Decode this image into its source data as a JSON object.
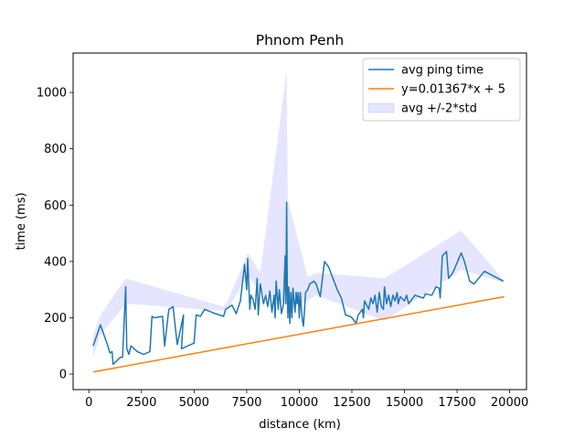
{
  "chart_data": {
    "type": "line",
    "title": "Phnom Penh",
    "xlabel": "distance (km)",
    "ylabel": "time (ms)",
    "xlim": [
      -750,
      20800
    ],
    "ylim": [
      -55,
      1140
    ],
    "xticks": [
      0,
      2500,
      5000,
      7500,
      10000,
      12500,
      15000,
      17500,
      20000
    ],
    "yticks": [
      0,
      200,
      400,
      600,
      800,
      1000
    ],
    "grid": false,
    "legend_position": "top-right",
    "series": [
      {
        "name": "avg ping time",
        "kind": "line",
        "color": "#1f77b4",
        "points": [
          [
            200,
            100
          ],
          [
            550,
            175
          ],
          [
            900,
            100
          ],
          [
            1000,
            75
          ],
          [
            1100,
            80
          ],
          [
            1150,
            35
          ],
          [
            1500,
            60
          ],
          [
            1600,
            60
          ],
          [
            1750,
            310
          ],
          [
            1800,
            90
          ],
          [
            1900,
            70
          ],
          [
            2000,
            100
          ],
          [
            2300,
            80
          ],
          [
            2600,
            70
          ],
          [
            2900,
            80
          ],
          [
            3000,
            205
          ],
          [
            3100,
            200
          ],
          [
            3500,
            205
          ],
          [
            3600,
            100
          ],
          [
            3800,
            230
          ],
          [
            4000,
            240
          ],
          [
            4200,
            105
          ],
          [
            4500,
            210
          ],
          [
            4400,
            90
          ],
          [
            5000,
            110
          ],
          [
            5100,
            210
          ],
          [
            5300,
            205
          ],
          [
            5500,
            230
          ],
          [
            6000,
            215
          ],
          [
            6400,
            205
          ],
          [
            6500,
            230
          ],
          [
            6800,
            245
          ],
          [
            7000,
            215
          ],
          [
            7200,
            260
          ],
          [
            7400,
            390
          ],
          [
            7500,
            300
          ],
          [
            7550,
            410
          ],
          [
            7650,
            230
          ],
          [
            7700,
            280
          ],
          [
            7800,
            265
          ],
          [
            7900,
            230
          ],
          [
            8000,
            340
          ],
          [
            8050,
            210
          ],
          [
            8150,
            320
          ],
          [
            8300,
            250
          ],
          [
            8400,
            280
          ],
          [
            8500,
            240
          ],
          [
            8600,
            295
          ],
          [
            8700,
            220
          ],
          [
            8800,
            280
          ],
          [
            8850,
            200
          ],
          [
            8900,
            330
          ],
          [
            9000,
            230
          ],
          [
            9050,
            300
          ],
          [
            9150,
            215
          ],
          [
            9250,
            250
          ],
          [
            9300,
            360
          ],
          [
            9330,
            420
          ],
          [
            9360,
            250
          ],
          [
            9400,
            610
          ],
          [
            9430,
            300
          ],
          [
            9460,
            200
          ],
          [
            9500,
            310
          ],
          [
            9550,
            180
          ],
          [
            9600,
            290
          ],
          [
            9650,
            200
          ],
          [
            9700,
            305
          ],
          [
            9750,
            260
          ],
          [
            9800,
            220
          ],
          [
            9850,
            290
          ],
          [
            9900,
            250
          ],
          [
            9950,
            290
          ],
          [
            10000,
            200
          ],
          [
            10050,
            290
          ],
          [
            10100,
            230
          ],
          [
            10150,
            190
          ],
          [
            10200,
            170
          ],
          [
            10300,
            290
          ],
          [
            10400,
            300
          ],
          [
            10500,
            320
          ],
          [
            10700,
            330
          ],
          [
            10800,
            320
          ],
          [
            11000,
            275
          ],
          [
            11200,
            400
          ],
          [
            11400,
            380
          ],
          [
            11800,
            300
          ],
          [
            12000,
            270
          ],
          [
            12200,
            210
          ],
          [
            12400,
            205
          ],
          [
            12500,
            200
          ],
          [
            12700,
            180
          ],
          [
            12800,
            210
          ],
          [
            13000,
            230
          ],
          [
            13050,
            200
          ],
          [
            13100,
            260
          ],
          [
            13300,
            230
          ],
          [
            13400,
            270
          ],
          [
            13500,
            250
          ],
          [
            13600,
            280
          ],
          [
            13700,
            220
          ],
          [
            13800,
            290
          ],
          [
            13900,
            240
          ],
          [
            14000,
            230
          ],
          [
            14050,
            310
          ],
          [
            14150,
            250
          ],
          [
            14250,
            280
          ],
          [
            14350,
            240
          ],
          [
            14450,
            280
          ],
          [
            14550,
            260
          ],
          [
            14650,
            290
          ],
          [
            14700,
            250
          ],
          [
            14800,
            275
          ],
          [
            15000,
            260
          ],
          [
            15100,
            280
          ],
          [
            15200,
            250
          ],
          [
            15500,
            280
          ],
          [
            15700,
            275
          ],
          [
            15900,
            270
          ],
          [
            16000,
            285
          ],
          [
            16300,
            280
          ],
          [
            16500,
            310
          ],
          [
            16650,
            305
          ],
          [
            16700,
            270
          ],
          [
            16800,
            420
          ],
          [
            17000,
            435
          ],
          [
            17100,
            340
          ],
          [
            17300,
            360
          ],
          [
            17700,
            430
          ],
          [
            17850,
            400
          ],
          [
            18100,
            330
          ],
          [
            18300,
            320
          ],
          [
            18800,
            365
          ],
          [
            19700,
            330
          ]
        ]
      },
      {
        "name": "y=0.01367*x + 5",
        "kind": "line",
        "color": "#ff7f0e",
        "points": [
          [
            200,
            7.7
          ],
          [
            19750,
            275
          ]
        ]
      },
      {
        "name": "avg +/-2*std",
        "kind": "band",
        "color": "#0000ff",
        "opacity": 0.1,
        "x": [
          200,
          550,
          1750,
          6400,
          6600,
          7550,
          8150,
          9400,
          9450,
          10400,
          10800,
          14050,
          17700,
          19700
        ],
        "lower": [
          60,
          140,
          250,
          225,
          230,
          350,
          290,
          250,
          230,
          260,
          280,
          190,
          370,
          325
        ],
        "upper": [
          140,
          210,
          340,
          240,
          260,
          430,
          360,
          1080,
          620,
          345,
          360,
          340,
          510,
          335
        ]
      }
    ]
  }
}
